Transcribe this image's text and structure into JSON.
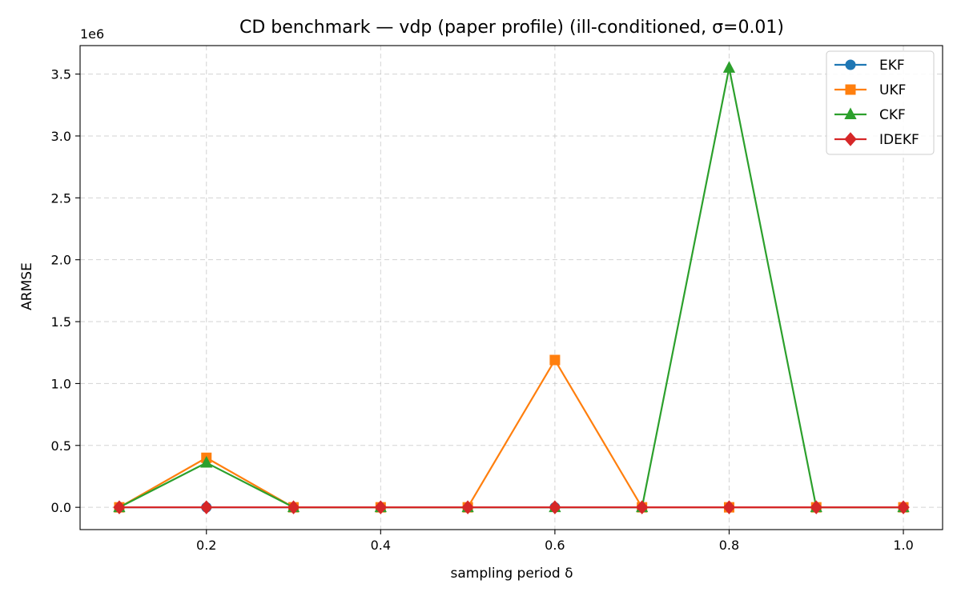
{
  "chart_data": {
    "type": "line",
    "title": "CD benchmark — vdp (paper profile) (ill-conditioned, σ=0.01)",
    "xlabel": "sampling period δ",
    "ylabel": "ARMSE",
    "y_offset_label": "1e6",
    "x": [
      0.1,
      0.2,
      0.3,
      0.4,
      0.5,
      0.6,
      0.7,
      0.8,
      0.9,
      1.0
    ],
    "xlim": [
      0.055,
      1.045
    ],
    "ylim": [
      -0.18,
      3.73
    ],
    "x_ticks": [
      0.2,
      0.4,
      0.6,
      0.8,
      1.0
    ],
    "x_tick_labels": [
      "0.2",
      "0.4",
      "0.6",
      "0.8",
      "1.0"
    ],
    "y_ticks": [
      0.0,
      0.5,
      1.0,
      1.5,
      2.0,
      2.5,
      3.0,
      3.5
    ],
    "y_tick_labels": [
      "0.0",
      "0.5",
      "1.0",
      "1.5",
      "2.0",
      "2.5",
      "3.0",
      "3.5"
    ],
    "grid": true,
    "legend_position": "top-right",
    "series": [
      {
        "name": "EKF",
        "color": "#1f77b4",
        "marker": "circle",
        "values": [
          0.0,
          0.0,
          0.0,
          0.0,
          0.0,
          0.0,
          0.0,
          0.0,
          0.0,
          0.0
        ]
      },
      {
        "name": "UKF",
        "color": "#ff7f0e",
        "marker": "square",
        "values": [
          0.0,
          0.4,
          0.0,
          0.0,
          0.0,
          1.19,
          0.0,
          0.0,
          0.0,
          0.0
        ]
      },
      {
        "name": "CKF",
        "color": "#2ca02c",
        "marker": "triangle",
        "values": [
          0.0,
          0.36,
          0.0,
          0.0,
          0.0,
          0.0,
          0.0,
          3.55,
          0.0,
          0.0
        ]
      },
      {
        "name": "IDEKF",
        "color": "#d62728",
        "marker": "diamond",
        "values": [
          0.0,
          0.0,
          0.0,
          0.0,
          0.0,
          0.0,
          0.0,
          0.0,
          0.0,
          0.0
        ]
      }
    ]
  }
}
